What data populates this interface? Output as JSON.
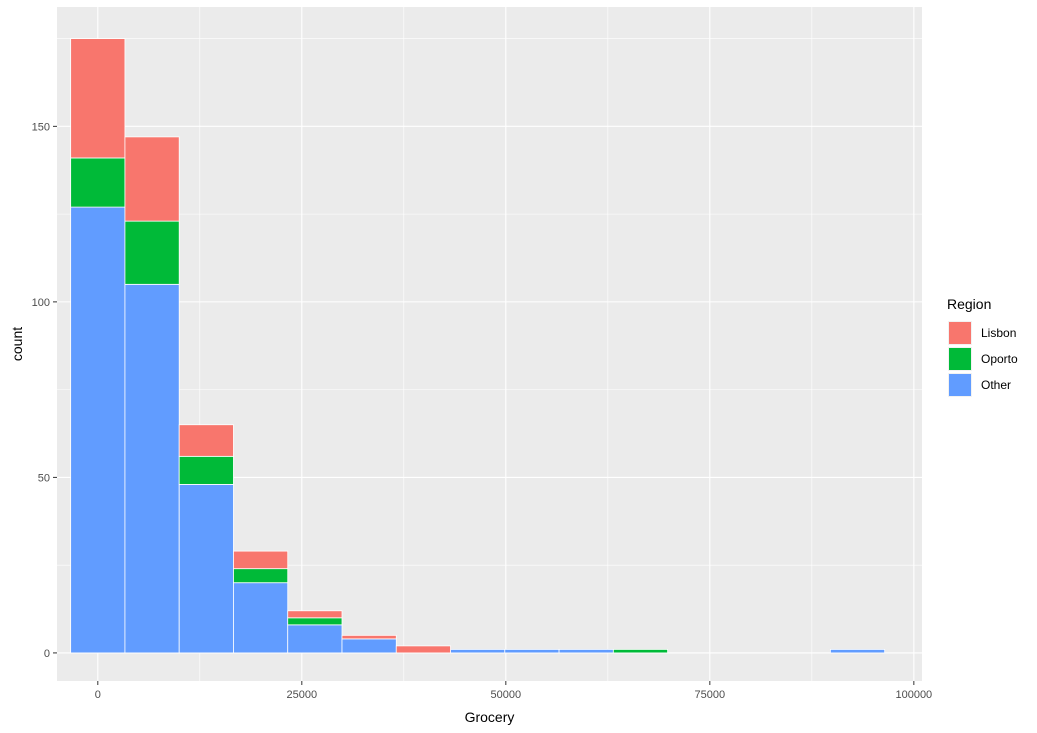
{
  "chart_data": {
    "type": "bar",
    "stacked": true,
    "xlabel": "Grocery",
    "ylabel": "count",
    "xlim": [
      -5000,
      101000
    ],
    "ylim": [
      -8,
      184
    ],
    "x_ticks": [
      0,
      25000,
      50000,
      75000,
      100000
    ],
    "x_tick_labels": [
      "0",
      "25000",
      "50000",
      "75000",
      "100000"
    ],
    "y_ticks": [
      0,
      50,
      100,
      150
    ],
    "y_tick_labels": [
      "0",
      "50",
      "100",
      "150"
    ],
    "bin_width": 6650,
    "bin_starts": [
      -3325,
      3325,
      9975,
      16625,
      23275,
      29925,
      36575,
      43225,
      49875,
      56525,
      63175,
      69825,
      76475,
      83125,
      89775
    ],
    "series": [
      {
        "name": "Other",
        "color": "#619CFF",
        "values": [
          127,
          105,
          48,
          20,
          8,
          4,
          0,
          1,
          1,
          1,
          0,
          0,
          0,
          0,
          1
        ]
      },
      {
        "name": "Oporto",
        "color": "#00BA38",
        "values": [
          14,
          18,
          8,
          4,
          2,
          0,
          0,
          0,
          0,
          0,
          1,
          0,
          0,
          0,
          0
        ]
      },
      {
        "name": "Lisbon",
        "color": "#F8766D",
        "values": [
          34,
          24,
          9,
          5,
          2,
          1,
          2,
          0,
          0,
          0,
          0,
          0,
          0,
          0,
          0
        ]
      }
    ],
    "legend": {
      "title": "Region",
      "position": "right",
      "entries": [
        {
          "label": "Lisbon",
          "color": "#F8766D"
        },
        {
          "label": "Oporto",
          "color": "#00BA38"
        },
        {
          "label": "Other",
          "color": "#619CFF"
        }
      ]
    },
    "grid": true,
    "panel_background": "#EBEBEB",
    "grid_color": "#FFFFFF"
  }
}
